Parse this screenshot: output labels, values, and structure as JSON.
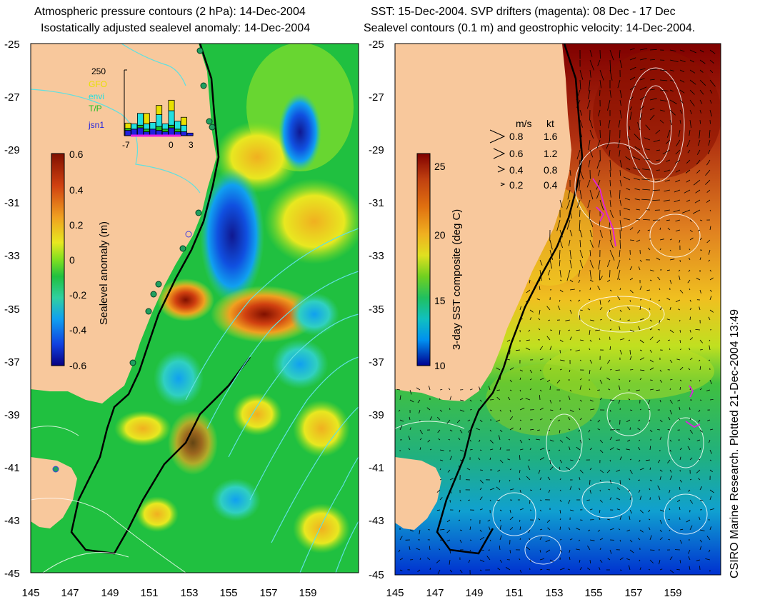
{
  "left_panel": {
    "title_line1": "Atmospheric pressure contours (2 hPa): 14-Dec-2004",
    "title_line2": "Isostatically adjusted sealevel anomaly: 14-Dec-2004",
    "colorbar": {
      "label": "Sealevel anomaly (m)",
      "ticks": [
        "0.6",
        "0.4",
        "0.2",
        "0",
        "-0.2",
        "-0.4",
        "-0.6"
      ],
      "colors": [
        "#080080",
        "#1040e0",
        "#10a0f0",
        "#30d090",
        "#20c040",
        "#80e020",
        "#e8e820",
        "#f0a020",
        "#d04010",
        "#801000"
      ]
    },
    "inset": {
      "ymax_label": "250",
      "legend": [
        {
          "label": "GFO",
          "color": "#e8e000"
        },
        {
          "label": "envi",
          "color": "#20e0e0"
        },
        {
          "label": "T/P",
          "color": "#20c020"
        },
        {
          "label": "jsn1",
          "color": "#2020e0"
        }
      ],
      "xticks": [
        "-7",
        "0",
        "3"
      ],
      "days": [
        {
          "jsn1": 20,
          "tp": 8,
          "envi": 0,
          "gfo": 20
        },
        {
          "jsn1": 25,
          "tp": 0,
          "envi": 20,
          "gfo": 0
        },
        {
          "jsn1": 30,
          "tp": 10,
          "envi": 45,
          "gfo": 0
        },
        {
          "jsn1": 15,
          "tp": 10,
          "envi": 20,
          "gfo": 40
        },
        {
          "jsn1": 25,
          "tp": 0,
          "envi": 25,
          "gfo": 0
        },
        {
          "jsn1": 20,
          "tp": 15,
          "envi": 45,
          "gfo": 35
        },
        {
          "jsn1": 15,
          "tp": 10,
          "envi": 20,
          "gfo": 0
        },
        {
          "jsn1": 30,
          "tp": 10,
          "envi": 55,
          "gfo": 40
        },
        {
          "jsn1": 15,
          "tp": 10,
          "envi": 30,
          "gfo": 0
        },
        {
          "jsn1": 15,
          "tp": 0,
          "envi": 25,
          "gfo": 30
        },
        {
          "jsn1": 10,
          "tp": 0,
          "envi": 0,
          "gfo": 0
        }
      ]
    }
  },
  "right_panel": {
    "title_line1": "SST: 15-Dec-2004. SVP drifters (magenta): 08 Dec - 17 Dec",
    "title_line2": "Sealevel contours (0.1 m) and geostrophic velocity: 14-Dec-2004.",
    "colorbar": {
      "label": "3-day SST composite (deg C)",
      "ticks": [
        "25",
        "20",
        "15",
        "10"
      ],
      "colors": [
        "#000090",
        "#0040e0",
        "#0090f0",
        "#10c0c0",
        "#20c060",
        "#70d020",
        "#e0e020",
        "#f0b020",
        "#e07010",
        "#c04010",
        "#800000"
      ]
    },
    "velocity_legend": {
      "header_ms": "m/s",
      "header_kt": "kt",
      "rows": [
        {
          "ms": "0.8",
          "kt": "1.6"
        },
        {
          "ms": "0.6",
          "kt": "1.2"
        },
        {
          "ms": "0.4",
          "kt": "0.8"
        },
        {
          "ms": "0.2",
          "kt": "0.4"
        }
      ]
    }
  },
  "axes": {
    "lat_labels": [
      "-25",
      "-27",
      "-29",
      "-31",
      "-33",
      "-35",
      "-37",
      "-39",
      "-41",
      "-43",
      "-45"
    ],
    "lon_labels": [
      "145",
      "147",
      "149",
      "151",
      "153",
      "155",
      "157",
      "159"
    ]
  },
  "credit": "CSIRO Marine Research. Plotted 21-Dec-2004 13:49",
  "colors": {
    "land": "#f8c89c",
    "contour_cyan": "#60e0e0",
    "drifter": "#e020e0",
    "station_fill": "#20a060",
    "station_alt": "#4040e0"
  }
}
